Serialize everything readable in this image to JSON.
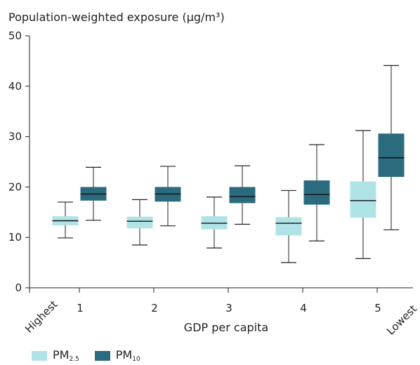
{
  "chart_data": {
    "type": "box",
    "title": "Population-weighted exposure (µg/m³)",
    "xlabel": "GDP per capita",
    "categories": [
      "1",
      "2",
      "3",
      "4",
      "5"
    ],
    "x_end_labels": {
      "left": "Highest",
      "right": "Lowest"
    },
    "ylim": [
      0,
      50
    ],
    "yticks": [
      0,
      10,
      20,
      30,
      40,
      50
    ],
    "grid": false,
    "legend_position": "bottom-left",
    "series": [
      {
        "name": "PM2.5",
        "name_main": "PM",
        "name_sub": "2.5",
        "color": "#b0e3e6",
        "boxes": [
          {
            "whisker_low": 9.9,
            "q1": 12.4,
            "median": 13.3,
            "q3": 14.2,
            "whisker_high": 17.0
          },
          {
            "whisker_low": 8.5,
            "q1": 11.8,
            "median": 13.2,
            "q3": 14.1,
            "whisker_high": 17.5
          },
          {
            "whisker_low": 7.9,
            "q1": 11.6,
            "median": 12.8,
            "q3": 14.2,
            "whisker_high": 18.0
          },
          {
            "whisker_low": 5.0,
            "q1": 10.4,
            "median": 12.8,
            "q3": 14.0,
            "whisker_high": 19.3
          },
          {
            "whisker_low": 5.8,
            "q1": 13.9,
            "median": 17.3,
            "q3": 21.1,
            "whisker_high": 31.2
          }
        ]
      },
      {
        "name": "PM10",
        "name_main": "PM",
        "name_sub": "10",
        "color": "#2b6b7d",
        "boxes": [
          {
            "whisker_low": 13.4,
            "q1": 17.3,
            "median": 18.6,
            "q3": 20.0,
            "whisker_high": 23.9
          },
          {
            "whisker_low": 12.3,
            "q1": 17.1,
            "median": 18.6,
            "q3": 20.0,
            "whisker_high": 24.1
          },
          {
            "whisker_low": 12.6,
            "q1": 16.8,
            "median": 18.1,
            "q3": 20.0,
            "whisker_high": 24.2
          },
          {
            "whisker_low": 9.3,
            "q1": 16.5,
            "median": 18.5,
            "q3": 21.3,
            "whisker_high": 28.4
          },
          {
            "whisker_low": 11.5,
            "q1": 22.0,
            "median": 25.8,
            "q3": 30.6,
            "whisker_high": 44.1
          }
        ]
      }
    ]
  }
}
